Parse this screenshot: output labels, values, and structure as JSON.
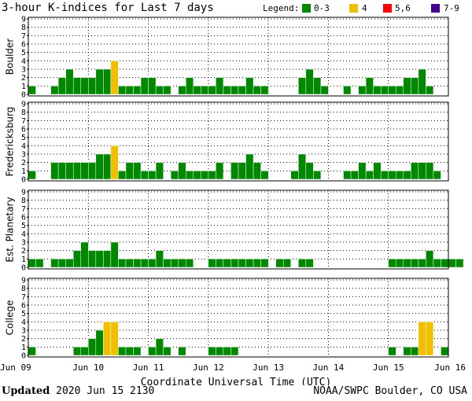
{
  "chart_data": {
    "type": "bar",
    "title": "3-hour K-indices for Last 7 days",
    "legend": {
      "label": "Legend:",
      "placement": "top-right",
      "items": [
        {
          "label": "0-3",
          "color": "#008800"
        },
        {
          "label": "4",
          "color": "#f0c000"
        },
        {
          "label": "5,6",
          "color": "#ff0000"
        },
        {
          "label": "7-9",
          "color": "#44008c"
        }
      ]
    },
    "xlabel": "Coordinate Universal Time (UTC)",
    "date_ticks": [
      "Jun 09",
      "Jun 10",
      "Jun 11",
      "Jun 12",
      "Jun 13",
      "Jun 14",
      "Jun 15",
      "Jun 16"
    ],
    "ylim": [
      0,
      9
    ],
    "yticks": [
      0,
      1,
      2,
      3,
      4,
      5,
      6,
      7,
      8,
      9
    ],
    "grid": true,
    "series": [
      {
        "name": "Boulder",
        "values": [
          1,
          0,
          0,
          1,
          2,
          3,
          2,
          2,
          2,
          3,
          3,
          4,
          1,
          1,
          1,
          2,
          2,
          1,
          1,
          0,
          1,
          2,
          1,
          1,
          1,
          2,
          1,
          1,
          1,
          2,
          1,
          1,
          0,
          0,
          0,
          0,
          2,
          3,
          2,
          1,
          0,
          0,
          1,
          0,
          1,
          2,
          1,
          1,
          1,
          1,
          2,
          2,
          3,
          1,
          0,
          0
        ]
      },
      {
        "name": "Fredericksburg",
        "values": [
          1,
          0,
          0,
          2,
          2,
          2,
          2,
          2,
          2,
          3,
          3,
          4,
          1,
          2,
          2,
          1,
          1,
          2,
          0,
          1,
          2,
          1,
          1,
          1,
          1,
          2,
          0,
          2,
          2,
          3,
          2,
          1,
          0,
          0,
          0,
          1,
          3,
          2,
          1,
          0,
          0,
          0,
          1,
          1,
          2,
          1,
          2,
          1,
          1,
          1,
          1,
          2,
          2,
          2,
          1,
          0
        ]
      },
      {
        "name": "Est. Planetary",
        "values": [
          1,
          1,
          0,
          1,
          1,
          1,
          2,
          3,
          2,
          2,
          2,
          3,
          1,
          1,
          1,
          1,
          1,
          2,
          1,
          1,
          1,
          1,
          0,
          0,
          1,
          1,
          1,
          1,
          1,
          1,
          1,
          1,
          0,
          1,
          1,
          0,
          1,
          1,
          0,
          0,
          0,
          0,
          0,
          0,
          0,
          0,
          0,
          0,
          1,
          1,
          1,
          1,
          1,
          2,
          1,
          1,
          1,
          1,
          0
        ]
      },
      {
        "name": "College",
        "values": [
          1,
          0,
          0,
          0,
          0,
          0,
          1,
          1,
          2,
          3,
          4,
          4,
          1,
          1,
          1,
          0,
          1,
          2,
          1,
          0,
          1,
          0,
          0,
          0,
          1,
          1,
          1,
          1,
          0,
          0,
          0,
          0,
          0,
          0,
          0,
          0,
          0,
          0,
          0,
          0,
          0,
          0,
          0,
          0,
          0,
          0,
          0,
          0,
          1,
          0,
          1,
          1,
          4,
          4,
          0,
          1,
          0
        ]
      }
    ]
  },
  "footer": {
    "updated_label": "Updated",
    "updated_value": "2020 Jun 15 2130",
    "source": "NOAA/SWPC Boulder, CO USA"
  }
}
